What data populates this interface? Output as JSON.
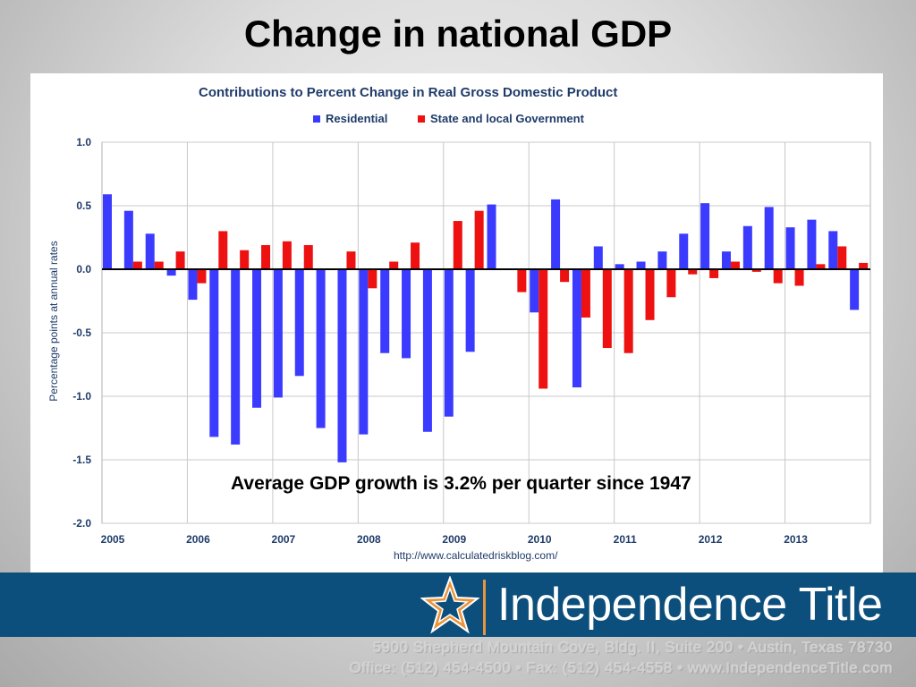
{
  "slide": {
    "title": "Change in national GDP",
    "annotation": "Average GDP growth is 3.2% per quarter since 1947"
  },
  "footer": {
    "brand": "Independence Title",
    "address_line_1": "5900 Shepherd Mountain Cove, Bldg. II, Suite 200 • Austin, Texas 78730",
    "address_line_2": "Office: (512) 454-4500  •  Fax: (512) 454-4558  •  www.IndependenceTitle.com",
    "colors": {
      "band": "#0c4f7c",
      "accent": "#e9933a"
    }
  },
  "chart_data": {
    "type": "bar",
    "title": "Contributions to Percent Change in Real Gross Domestic Product",
    "ylabel": "Percentage points at annual rates",
    "source": "http://www.calculatedriskblog.com/",
    "ylim": [
      -2.0,
      1.0
    ],
    "yticks": [
      "1.0",
      "0.5",
      "0.0",
      "-0.5",
      "-1.0",
      "-1.5",
      "-2.0"
    ],
    "years": [
      "2005",
      "2006",
      "2007",
      "2008",
      "2009",
      "2010",
      "2011",
      "2012",
      "2013"
    ],
    "legend_position": "top-left",
    "grid": true,
    "series": [
      {
        "name": "Residential",
        "color": "#3b3bff",
        "values": [
          0.59,
          0.46,
          0.28,
          -0.05,
          -0.24,
          -1.32,
          -1.38,
          -1.09,
          -1.01,
          -0.84,
          -1.25,
          -1.52,
          -1.3,
          -0.66,
          -0.7,
          -1.28,
          -1.16,
          -0.65,
          0.51,
          0.0,
          -0.34,
          0.55,
          -0.93,
          0.18,
          0.04,
          0.06,
          0.14,
          0.28,
          0.52,
          0.14,
          0.34,
          0.49,
          0.33,
          0.39,
          0.3,
          -0.32
        ]
      },
      {
        "name": "State and local Government",
        "color": "#ee1111",
        "values": [
          0.0,
          0.06,
          0.06,
          0.14,
          -0.11,
          0.3,
          0.15,
          0.19,
          0.22,
          0.19,
          0.0,
          0.14,
          -0.15,
          0.06,
          0.21,
          0.0,
          0.38,
          0.46,
          0.0,
          -0.18,
          -0.94,
          -0.1,
          -0.38,
          -0.62,
          -0.66,
          -0.4,
          -0.22,
          -0.04,
          -0.07,
          0.06,
          -0.02,
          -0.11,
          -0.13,
          0.04,
          0.18,
          0.05
        ]
      }
    ]
  }
}
